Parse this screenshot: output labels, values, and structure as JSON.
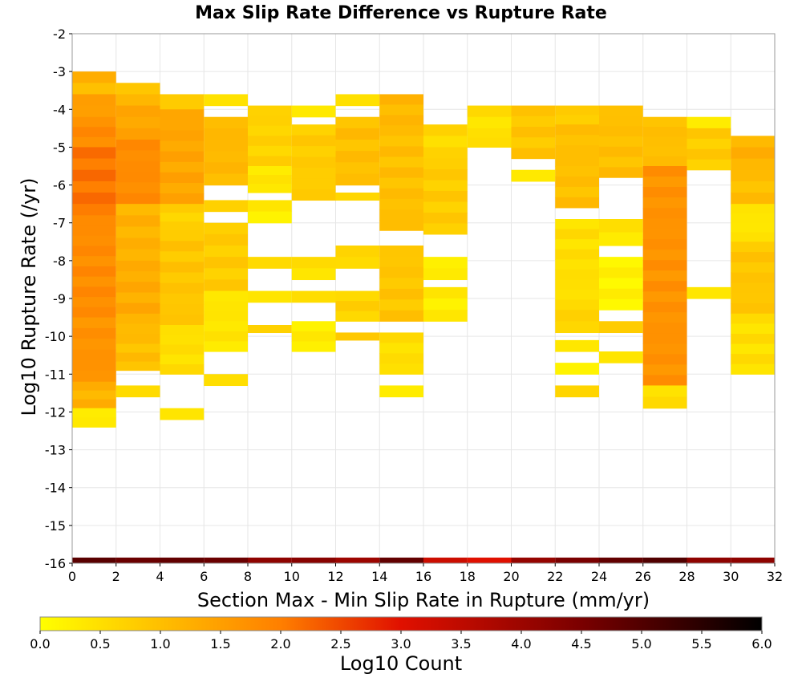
{
  "chart_data": {
    "type": "heatmap",
    "title": "Max Slip Rate Difference vs Rupture Rate",
    "xlabel": "Section Max - Min Slip Rate in Rupture (mm/yr)",
    "ylabel": "Log10 Rupture Rate (/yr)",
    "xlim": [
      0,
      32
    ],
    "ylim": [
      -16,
      -2
    ],
    "x_bin_width": 2,
    "y_bin_height": 0.28,
    "x_ticks": [
      "0",
      "2",
      "4",
      "6",
      "8",
      "10",
      "12",
      "14",
      "16",
      "18",
      "20",
      "22",
      "24",
      "26",
      "28",
      "30",
      "32"
    ],
    "y_ticks": [
      "-2",
      "-3",
      "-4",
      "-5",
      "-6",
      "-7",
      "-8",
      "-9",
      "-10",
      "-11",
      "-12",
      "-13",
      "-14",
      "-15",
      "-16"
    ],
    "grid": true,
    "colorbar": {
      "label": "Log10 Count",
      "range": [
        0,
        6
      ],
      "ticks": [
        "0.0",
        "0.5",
        "1.0",
        "1.5",
        "2.0",
        "2.5",
        "3.0",
        "3.5",
        "4.0",
        "4.5",
        "5.0",
        "5.5",
        "6.0"
      ],
      "stops": [
        {
          "v": 0.0,
          "c": "#ffff00"
        },
        {
          "v": 2.0,
          "c": "#ff7f00"
        },
        {
          "v": 3.0,
          "c": "#e01000"
        },
        {
          "v": 4.5,
          "c": "#7a0000"
        },
        {
          "v": 6.0,
          "c": "#000000"
        }
      ]
    },
    "columns": [
      {
        "x": 0,
        "ranges": [
          [
            -3.0,
            -3.3,
            1.4
          ],
          [
            -3.3,
            -3.6,
            0.9
          ],
          [
            -3.6,
            -4.2,
            1.5
          ],
          [
            -4.2,
            -5.0,
            1.8
          ],
          [
            -5.0,
            -6.8,
            2.1
          ],
          [
            -6.8,
            -9.5,
            1.8
          ],
          [
            -9.5,
            -11.2,
            1.7
          ],
          [
            -11.2,
            -11.9,
            1.2
          ],
          [
            -11.9,
            -12.4,
            0.3
          ]
        ]
      },
      {
        "x": 2,
        "ranges": [
          [
            -3.3,
            -3.9,
            1.0
          ],
          [
            -3.9,
            -4.8,
            1.4
          ],
          [
            -4.8,
            -6.5,
            1.8
          ],
          [
            -6.5,
            -8.0,
            1.2
          ],
          [
            -8.0,
            -9.4,
            1.3
          ],
          [
            -9.4,
            -10.2,
            1.1
          ],
          [
            -10.2,
            -10.9,
            1.0
          ],
          [
            -11.3,
            -11.6,
            0.5
          ]
        ]
      },
      {
        "x": 4,
        "ranges": [
          [
            -3.6,
            -4.0,
            0.9
          ],
          [
            -4.0,
            -6.5,
            1.4
          ],
          [
            -6.5,
            -7.2,
            0.7
          ],
          [
            -7.2,
            -9.7,
            0.9
          ],
          [
            -9.7,
            -11.0,
            0.5
          ],
          [
            -11.9,
            -12.2,
            0.3
          ]
        ]
      },
      {
        "x": 6,
        "ranges": [
          [
            -3.6,
            -3.9,
            0.5
          ],
          [
            -4.2,
            -6.0,
            1.1
          ],
          [
            -6.4,
            -6.7,
            0.6
          ],
          [
            -7.0,
            -8.8,
            0.8
          ],
          [
            -8.8,
            -10.4,
            0.4
          ],
          [
            -11.0,
            -11.3,
            0.4
          ]
        ]
      },
      {
        "x": 8,
        "ranges": [
          [
            -3.9,
            -5.5,
            0.7
          ],
          [
            -5.5,
            -6.2,
            0.4
          ],
          [
            -6.4,
            -7.0,
            0.3
          ],
          [
            -7.9,
            -8.2,
            0.6
          ],
          [
            -8.8,
            -9.1,
            0.5
          ],
          [
            -9.7,
            -9.9,
            0.6
          ]
        ]
      },
      {
        "x": 10,
        "ranges": [
          [
            -3.9,
            -4.2,
            0.3
          ],
          [
            -4.4,
            -6.4,
            0.8
          ],
          [
            -7.9,
            -8.5,
            0.5
          ],
          [
            -8.8,
            -9.1,
            0.5
          ],
          [
            -9.6,
            -10.4,
            0.3
          ]
        ]
      },
      {
        "x": 12,
        "ranges": [
          [
            -3.6,
            -3.9,
            0.4
          ],
          [
            -4.2,
            -6.0,
            1.0
          ],
          [
            -6.2,
            -6.4,
            0.6
          ],
          [
            -7.6,
            -8.2,
            0.6
          ],
          [
            -8.8,
            -9.6,
            0.7
          ],
          [
            -9.9,
            -10.1,
            0.8
          ]
        ]
      },
      {
        "x": 14,
        "ranges": [
          [
            -3.6,
            -4.7,
            1.1
          ],
          [
            -4.7,
            -7.2,
            1.0
          ],
          [
            -7.6,
            -9.6,
            0.9
          ],
          [
            -9.9,
            -11.0,
            0.5
          ],
          [
            -11.3,
            -11.6,
            0.4
          ]
        ]
      },
      {
        "x": 16,
        "ranges": [
          [
            -4.4,
            -5.3,
            0.6
          ],
          [
            -5.3,
            -7.3,
            0.8
          ],
          [
            -7.9,
            -8.5,
            0.3
          ],
          [
            -8.7,
            -9.6,
            0.3
          ]
        ]
      },
      {
        "x": 18,
        "ranges": [
          [
            -3.9,
            -4.5,
            0.5
          ],
          [
            -4.5,
            -5.0,
            0.5
          ]
        ]
      },
      {
        "x": 20,
        "ranges": [
          [
            -3.9,
            -5.3,
            0.9
          ],
          [
            -5.6,
            -5.9,
            0.3
          ]
        ]
      },
      {
        "x": 22,
        "ranges": [
          [
            -3.9,
            -4.4,
            0.8
          ],
          [
            -4.4,
            -6.6,
            1.0
          ],
          [
            -6.9,
            -9.3,
            0.5
          ],
          [
            -9.3,
            -9.9,
            0.7
          ],
          [
            -10.1,
            -10.4,
            0.3
          ],
          [
            -10.7,
            -11.0,
            0.3
          ],
          [
            -11.3,
            -11.6,
            0.6
          ]
        ]
      },
      {
        "x": 24,
        "ranges": [
          [
            -3.9,
            -5.8,
            1.0
          ],
          [
            -6.9,
            -7.6,
            0.4
          ],
          [
            -7.9,
            -9.3,
            0.2
          ],
          [
            -9.6,
            -9.9,
            0.8
          ],
          [
            -10.4,
            -10.7,
            0.3
          ]
        ]
      },
      {
        "x": 26,
        "ranges": [
          [
            -4.2,
            -5.5,
            1.0
          ],
          [
            -5.5,
            -11.3,
            1.7
          ],
          [
            -11.3,
            -11.9,
            0.5
          ]
        ]
      },
      {
        "x": 28,
        "ranges": [
          [
            -4.2,
            -4.5,
            0.4
          ],
          [
            -4.5,
            -5.6,
            0.8
          ],
          [
            -8.7,
            -9.0,
            0.4
          ]
        ]
      },
      {
        "x": 30,
        "ranges": [
          [
            -4.7,
            -5.6,
            1.2
          ],
          [
            -5.6,
            -6.5,
            1.0
          ],
          [
            -6.5,
            -7.5,
            0.4
          ],
          [
            -7.5,
            -9.4,
            0.9
          ],
          [
            -9.4,
            -11.0,
            0.5
          ]
        ]
      }
    ],
    "count_row": {
      "y_range": [
        -16.0,
        -15.85
      ],
      "values": [
        4.9,
        4.7,
        4.8,
        4.7,
        4.2,
        4.3,
        4.0,
        4.8,
        3.3,
        3.0,
        4.1,
        4.5,
        4.8,
        5.0,
        4.2,
        4.2
      ]
    }
  }
}
